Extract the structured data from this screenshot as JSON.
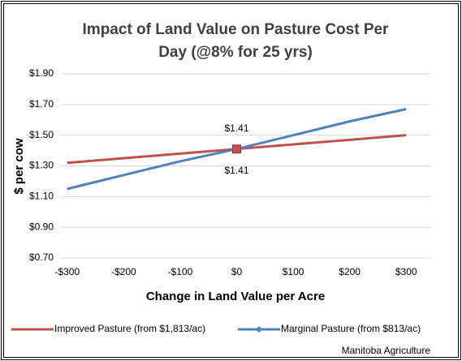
{
  "chart_data": {
    "type": "line",
    "title": "Impact of Land Value on Pasture Cost Per",
    "subtitle": "Day (@8% for 25 yrs)",
    "x_label": "Change in Land Value per Acre",
    "y_label": "$ per cow",
    "source": "Manitoba Agriculture",
    "categories": [
      "-$300",
      "-$200",
      "-$100",
      "$0",
      "$100",
      "$200",
      "$300"
    ],
    "series": [
      {
        "name": "Improved Pasture (from $1,813/ac)",
        "color": "#c0504d",
        "marker": "square",
        "values": [
          1.32,
          1.35,
          1.38,
          1.41,
          1.44,
          1.47,
          1.5
        ],
        "value_labels": [
          null,
          null,
          null,
          "$1.41",
          null,
          null,
          null
        ]
      },
      {
        "name": "Marginal Pasture (from $813/ac)",
        "color": "#4f81bd",
        "marker": "diamond",
        "values": [
          1.15,
          1.24,
          1.33,
          1.41,
          1.5,
          1.59,
          1.67
        ],
        "value_labels": [
          null,
          null,
          null,
          "$1.41",
          null,
          null,
          null
        ]
      }
    ],
    "ylim": [
      0.7,
      1.9
    ],
    "yticks": [
      {
        "value": 0.7,
        "label": "$0.70"
      },
      {
        "value": 0.9,
        "label": "$0.90"
      },
      {
        "value": 1.1,
        "label": "$1.10"
      },
      {
        "value": 1.3,
        "label": "$1.30"
      },
      {
        "value": 1.5,
        "label": "$1.50"
      },
      {
        "value": 1.7,
        "label": "$1.70"
      },
      {
        "value": 1.9,
        "label": "$1.90"
      }
    ],
    "grid": true,
    "legend": "bottom"
  }
}
